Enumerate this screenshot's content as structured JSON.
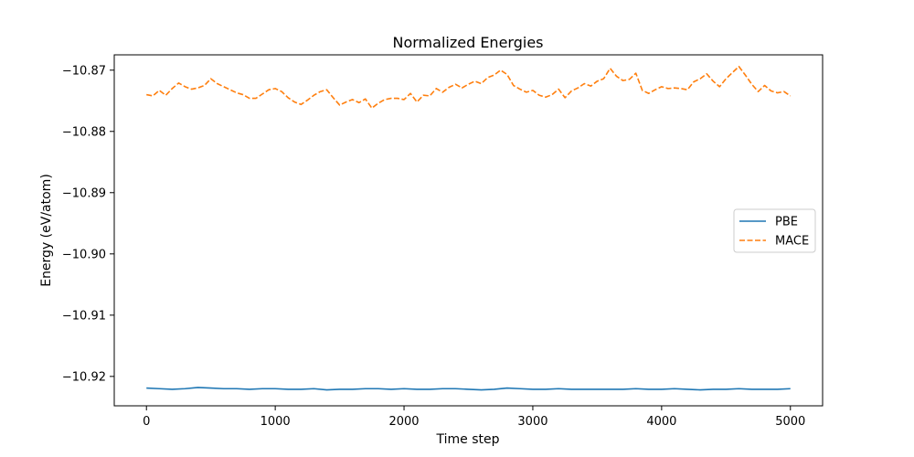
{
  "chart_data": {
    "type": "line",
    "title": "Normalized Energies",
    "xlabel": "Time step",
    "ylabel": "Energy (eV/atom)",
    "xlim": [
      -250,
      5250
    ],
    "ylim": [
      -10.9248,
      -10.8675
    ],
    "x_ticks": [
      0,
      1000,
      2000,
      3000,
      4000,
      5000
    ],
    "x_tick_labels": [
      "0",
      "1000",
      "2000",
      "3000",
      "4000",
      "5000"
    ],
    "y_ticks": [
      -10.92,
      -10.91,
      -10.9,
      -10.89,
      -10.88,
      -10.87
    ],
    "y_tick_labels": [
      "−10.92",
      "−10.91",
      "−10.90",
      "−10.89",
      "−10.88",
      "−10.87"
    ],
    "grid": false,
    "legend_position": "center-right",
    "series": [
      {
        "name": "PBE",
        "color": "#1f77b4",
        "style": "solid",
        "x": [
          0,
          100,
          200,
          300,
          400,
          500,
          600,
          700,
          800,
          900,
          1000,
          1100,
          1200,
          1300,
          1400,
          1500,
          1600,
          1700,
          1800,
          1900,
          2000,
          2100,
          2200,
          2300,
          2400,
          2500,
          2600,
          2700,
          2800,
          2900,
          3000,
          3100,
          3200,
          3300,
          3400,
          3500,
          3600,
          3700,
          3800,
          3900,
          4000,
          4100,
          4200,
          4300,
          4400,
          4500,
          4600,
          4700,
          4800,
          4900,
          5000
        ],
        "y": [
          -10.9219,
          -10.922,
          -10.9221,
          -10.922,
          -10.9218,
          -10.9219,
          -10.922,
          -10.922,
          -10.9221,
          -10.922,
          -10.922,
          -10.9221,
          -10.9221,
          -10.922,
          -10.9222,
          -10.9221,
          -10.9221,
          -10.922,
          -10.922,
          -10.9221,
          -10.922,
          -10.9221,
          -10.9221,
          -10.922,
          -10.922,
          -10.9221,
          -10.9222,
          -10.9221,
          -10.9219,
          -10.922,
          -10.9221,
          -10.9221,
          -10.922,
          -10.9221,
          -10.9221,
          -10.9221,
          -10.9221,
          -10.9221,
          -10.922,
          -10.9221,
          -10.9221,
          -10.922,
          -10.9221,
          -10.9222,
          -10.9221,
          -10.9221,
          -10.922,
          -10.9221,
          -10.9221,
          -10.9221,
          -10.922
        ]
      },
      {
        "name": "MACE",
        "color": "#ff7f0e",
        "style": "dashed",
        "x": [
          0,
          50,
          100,
          150,
          200,
          250,
          300,
          350,
          400,
          450,
          500,
          550,
          600,
          650,
          700,
          750,
          800,
          850,
          900,
          950,
          1000,
          1050,
          1100,
          1150,
          1200,
          1250,
          1300,
          1350,
          1400,
          1450,
          1500,
          1550,
          1600,
          1650,
          1700,
          1750,
          1800,
          1850,
          1900,
          1950,
          2000,
          2050,
          2100,
          2150,
          2200,
          2250,
          2300,
          2350,
          2400,
          2450,
          2500,
          2550,
          2600,
          2650,
          2700,
          2750,
          2800,
          2850,
          2900,
          2950,
          3000,
          3050,
          3100,
          3150,
          3200,
          3250,
          3300,
          3350,
          3400,
          3450,
          3500,
          3550,
          3600,
          3650,
          3700,
          3750,
          3800,
          3850,
          3900,
          3950,
          4000,
          4050,
          4100,
          4150,
          4200,
          4250,
          4300,
          4350,
          4400,
          4450,
          4500,
          4550,
          4600,
          4650,
          4700,
          4750,
          4800,
          4850,
          4900,
          4950,
          5000
        ],
        "y": [
          -10.874,
          -10.8742,
          -10.8733,
          -10.8741,
          -10.873,
          -10.8721,
          -10.8727,
          -10.8731,
          -10.8729,
          -10.8725,
          -10.8714,
          -10.8722,
          -10.8727,
          -10.8732,
          -10.8737,
          -10.874,
          -10.8746,
          -10.8746,
          -10.8739,
          -10.8732,
          -10.873,
          -10.8735,
          -10.8745,
          -10.8752,
          -10.8756,
          -10.8749,
          -10.8741,
          -10.8735,
          -10.8732,
          -10.8745,
          -10.8757,
          -10.8752,
          -10.8748,
          -10.8753,
          -10.8747,
          -10.8762,
          -10.8754,
          -10.8748,
          -10.8746,
          -10.8746,
          -10.8748,
          -10.8738,
          -10.8752,
          -10.8741,
          -10.8742,
          -10.873,
          -10.8736,
          -10.8728,
          -10.8723,
          -10.8729,
          -10.8723,
          -10.8718,
          -10.8722,
          -10.8712,
          -10.8708,
          -10.87,
          -10.8707,
          -10.8725,
          -10.8731,
          -10.8736,
          -10.8733,
          -10.8741,
          -10.8744,
          -10.874,
          -10.8731,
          -10.8745,
          -10.8734,
          -10.8729,
          -10.8722,
          -10.8726,
          -10.8718,
          -10.8714,
          -10.8697,
          -10.871,
          -10.8717,
          -10.8715,
          -10.8705,
          -10.8733,
          -10.8738,
          -10.8732,
          -10.8727,
          -10.873,
          -10.8729,
          -10.873,
          -10.8732,
          -10.8719,
          -10.8714,
          -10.8706,
          -10.8718,
          -10.8727,
          -10.8714,
          -10.8704,
          -10.8694,
          -10.8708,
          -10.8723,
          -10.8735,
          -10.8725,
          -10.8734,
          -10.8737,
          -10.8735,
          -10.8742
        ]
      }
    ]
  }
}
